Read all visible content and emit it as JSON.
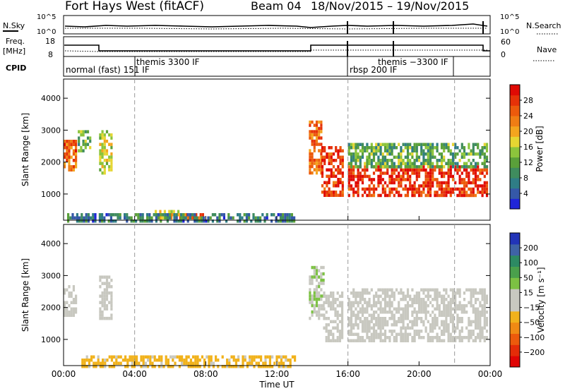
{
  "header": {
    "station": "Fort Hays West (fitACF)",
    "beam": "Beam 04",
    "date_range": "18/Nov/2015 – 19/Nov/2015"
  },
  "strips": {
    "nsky_label": "N.Sky",
    "nsearch_label": "N.Search",
    "freq_label": "Freq.",
    "freq_unit": "[MHz]",
    "nave_label": "Nave",
    "cpid_label": "CPID",
    "nsky_ticks": [
      "10^5",
      "10^0"
    ],
    "nsearch_ticks": [
      "10^5",
      "10^0"
    ],
    "freq_ticks": [
      "18",
      "8"
    ],
    "nave_ticks": [
      "60",
      "0"
    ]
  },
  "cpid_segments": [
    {
      "label": "normal (fast) 151 IF",
      "t": 0
    },
    {
      "label": "themis 3300 IF",
      "t": 4.0
    },
    {
      "label": "rbsp 200 IF",
      "t": 16.0
    },
    {
      "label": "themis −3300 IF",
      "t": 18.0
    }
  ],
  "mode_change_times_ut": [
    4.0,
    16.0,
    22.0
  ],
  "x_axis": {
    "label": "Time UT",
    "ticks": [
      "00:00",
      "04:00",
      "08:00",
      "12:00",
      "16:00",
      "20:00",
      "00:00"
    ],
    "range_hours": [
      0,
      24
    ]
  },
  "y_axis": {
    "label": "Slant Range [km]",
    "ticks": [
      "1000",
      "2000",
      "3000",
      "4000"
    ],
    "range_km": [
      180,
      4600
    ]
  },
  "power_scale": {
    "label": "Power [dB]",
    "ticks": [
      "4",
      "8",
      "12",
      "16",
      "20",
      "24",
      "28"
    ],
    "colors": [
      "#1f25d8",
      "#3558a8",
      "#2f7d86",
      "#3f8c5e",
      "#5aa03a",
      "#8cc43c",
      "#e6d632",
      "#f4a51e",
      "#f07d14",
      "#ec5a0c",
      "#e63208",
      "#e00a04"
    ]
  },
  "velocity_scale": {
    "label": "Velocity [m s⁻¹]",
    "ticks": [
      "200",
      "100",
      "50",
      "15",
      "−15",
      "−50",
      "−100",
      "−200"
    ],
    "colors": [
      "#2234b8",
      "#3f63a6",
      "#2d8a63",
      "#4aa04c",
      "#7cc143",
      "#c8c8c0",
      "#c8c8c0",
      "#f1b21c",
      "#f08a14",
      "#ec5a0c",
      "#e42c08",
      "#e00505"
    ]
  },
  "chart_data": {
    "type": "heatmap",
    "panels": [
      {
        "name": "power",
        "unit": "dB",
        "blobs": [
          {
            "t0": 0.0,
            "t1": 0.7,
            "r0": 1800,
            "r1": 2700,
            "v": 24
          },
          {
            "t0": 0.8,
            "t1": 1.5,
            "r0": 2400,
            "r1": 3000,
            "v": 12
          },
          {
            "t0": 2.0,
            "t1": 2.7,
            "r0": 1700,
            "r1": 3000,
            "v": 16
          },
          {
            "t0": 5.0,
            "t1": 7.0,
            "r0": 300,
            "r1": 500,
            "v": 18
          },
          {
            "t0": 6.0,
            "t1": 7.8,
            "r0": 250,
            "r1": 400,
            "v": 24
          },
          {
            "t0": 0.2,
            "t1": 13.0,
            "r0": 180,
            "r1": 400,
            "v": 8
          },
          {
            "t0": 13.8,
            "t1": 14.5,
            "r0": 1700,
            "r1": 3300,
            "v": 24
          },
          {
            "t0": 14.5,
            "t1": 15.7,
            "r0": 1000,
            "r1": 2500,
            "v": 28
          },
          {
            "t0": 16.0,
            "t1": 23.8,
            "r0": 1000,
            "r1": 1900,
            "v": 28
          },
          {
            "t0": 16.0,
            "t1": 23.8,
            "r0": 1900,
            "r1": 2600,
            "v": 12
          }
        ]
      },
      {
        "name": "velocity",
        "unit": "m s^-1",
        "blobs": [
          {
            "t0": 0.0,
            "t1": 0.7,
            "r0": 1800,
            "r1": 2700,
            "v": 0
          },
          {
            "t0": 2.0,
            "t1": 2.7,
            "r0": 1700,
            "r1": 3000,
            "v": 0
          },
          {
            "t0": 1.0,
            "t1": 13.0,
            "r0": 180,
            "r1": 500,
            "v": -50
          },
          {
            "t0": 13.8,
            "t1": 14.6,
            "r0": 1700,
            "r1": 3300,
            "v": 30
          },
          {
            "t0": 14.6,
            "t1": 15.7,
            "r0": 1000,
            "r1": 2500,
            "v": 0
          },
          {
            "t0": 16.0,
            "t1": 23.8,
            "r0": 1000,
            "r1": 2600,
            "v": 0
          }
        ]
      }
    ]
  }
}
